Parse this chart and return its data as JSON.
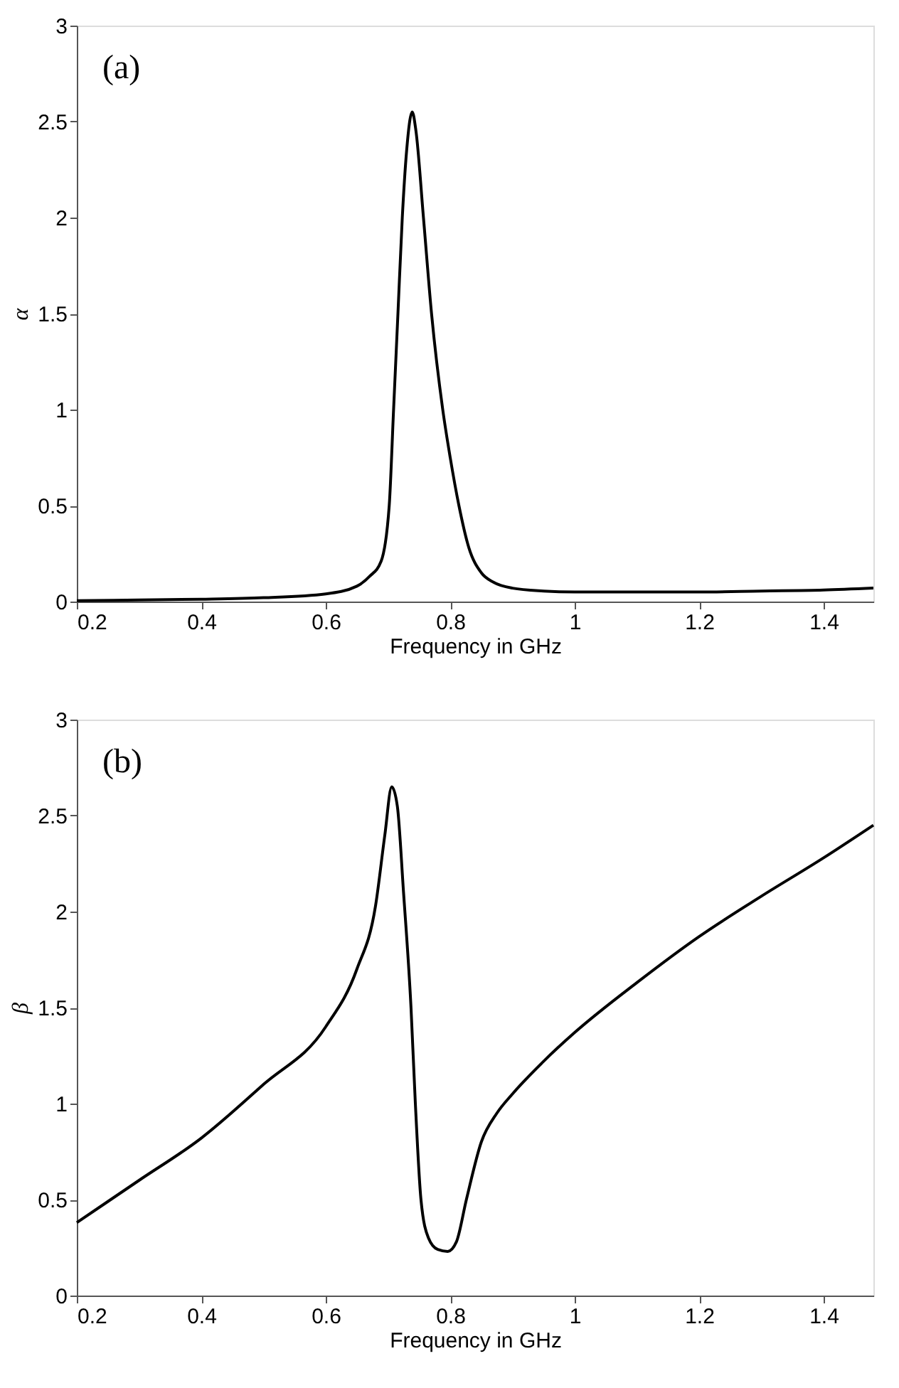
{
  "chart_data": [
    {
      "type": "line",
      "xlabel": "Frequency in GHz",
      "ylabel": "α",
      "annotations": [
        "(a)"
      ],
      "xlim": [
        0.2,
        1.48
      ],
      "ylim": [
        0,
        3
      ],
      "xticks": [
        0.2,
        0.4,
        0.6,
        0.8,
        1,
        1.2,
        1.4
      ],
      "yticks": [
        0,
        0.5,
        1,
        1.5,
        2,
        2.5,
        3
      ],
      "grid": false,
      "series": [
        {
          "color": "#000000",
          "x": [
            0.2,
            0.3,
            0.4,
            0.5,
            0.6,
            0.65,
            0.67,
            0.689,
            0.702,
            0.709,
            0.716,
            0.723,
            0.73,
            0.739,
            0.745,
            0.757,
            0.77,
            0.788,
            0.8,
            0.814,
            0.83,
            0.85,
            0.87,
            0.9,
            0.95,
            1.0,
            1.1,
            1.2,
            1.3,
            1.4,
            1.48
          ],
          "values": [
            0.005,
            0.008,
            0.012,
            0.02,
            0.04,
            0.08,
            0.13,
            0.21,
            0.5,
            1.0,
            1.5,
            2.0,
            2.35,
            2.55,
            2.45,
            2.0,
            1.5,
            1.0,
            0.75,
            0.5,
            0.28,
            0.15,
            0.1,
            0.07,
            0.055,
            0.05,
            0.05,
            0.05,
            0.055,
            0.06,
            0.07
          ]
        }
      ]
    },
    {
      "type": "line",
      "xlabel": "Frequency in GHz",
      "ylabel": "β",
      "annotations": [
        "(b)"
      ],
      "xlim": [
        0.2,
        1.48
      ],
      "ylim": [
        0,
        3
      ],
      "xticks": [
        0.2,
        0.4,
        0.6,
        0.8,
        1,
        1.2,
        1.4
      ],
      "yticks": [
        0,
        0.5,
        1,
        1.5,
        2,
        2.5,
        3
      ],
      "grid": false,
      "series": [
        {
          "color": "#000000",
          "x": [
            0.2,
            0.3,
            0.4,
            0.5,
            0.6,
            0.65,
            0.68,
            0.695,
            0.706,
            0.715,
            0.725,
            0.737,
            0.744,
            0.753,
            0.765,
            0.78,
            0.796,
            0.81,
            0.826,
            0.85,
            0.875,
            0.9,
            0.95,
            1.0,
            1.1,
            1.2,
            1.3,
            1.4,
            1.48
          ],
          "values": [
            0.38,
            0.6,
            0.82,
            1.1,
            1.4,
            1.7,
            2.03,
            2.4,
            2.65,
            2.55,
            2.1,
            1.5,
            1.0,
            0.5,
            0.3,
            0.24,
            0.23,
            0.28,
            0.5,
            0.8,
            0.95,
            1.05,
            1.22,
            1.37,
            1.63,
            1.87,
            2.08,
            2.28,
            2.45
          ]
        }
      ]
    }
  ]
}
